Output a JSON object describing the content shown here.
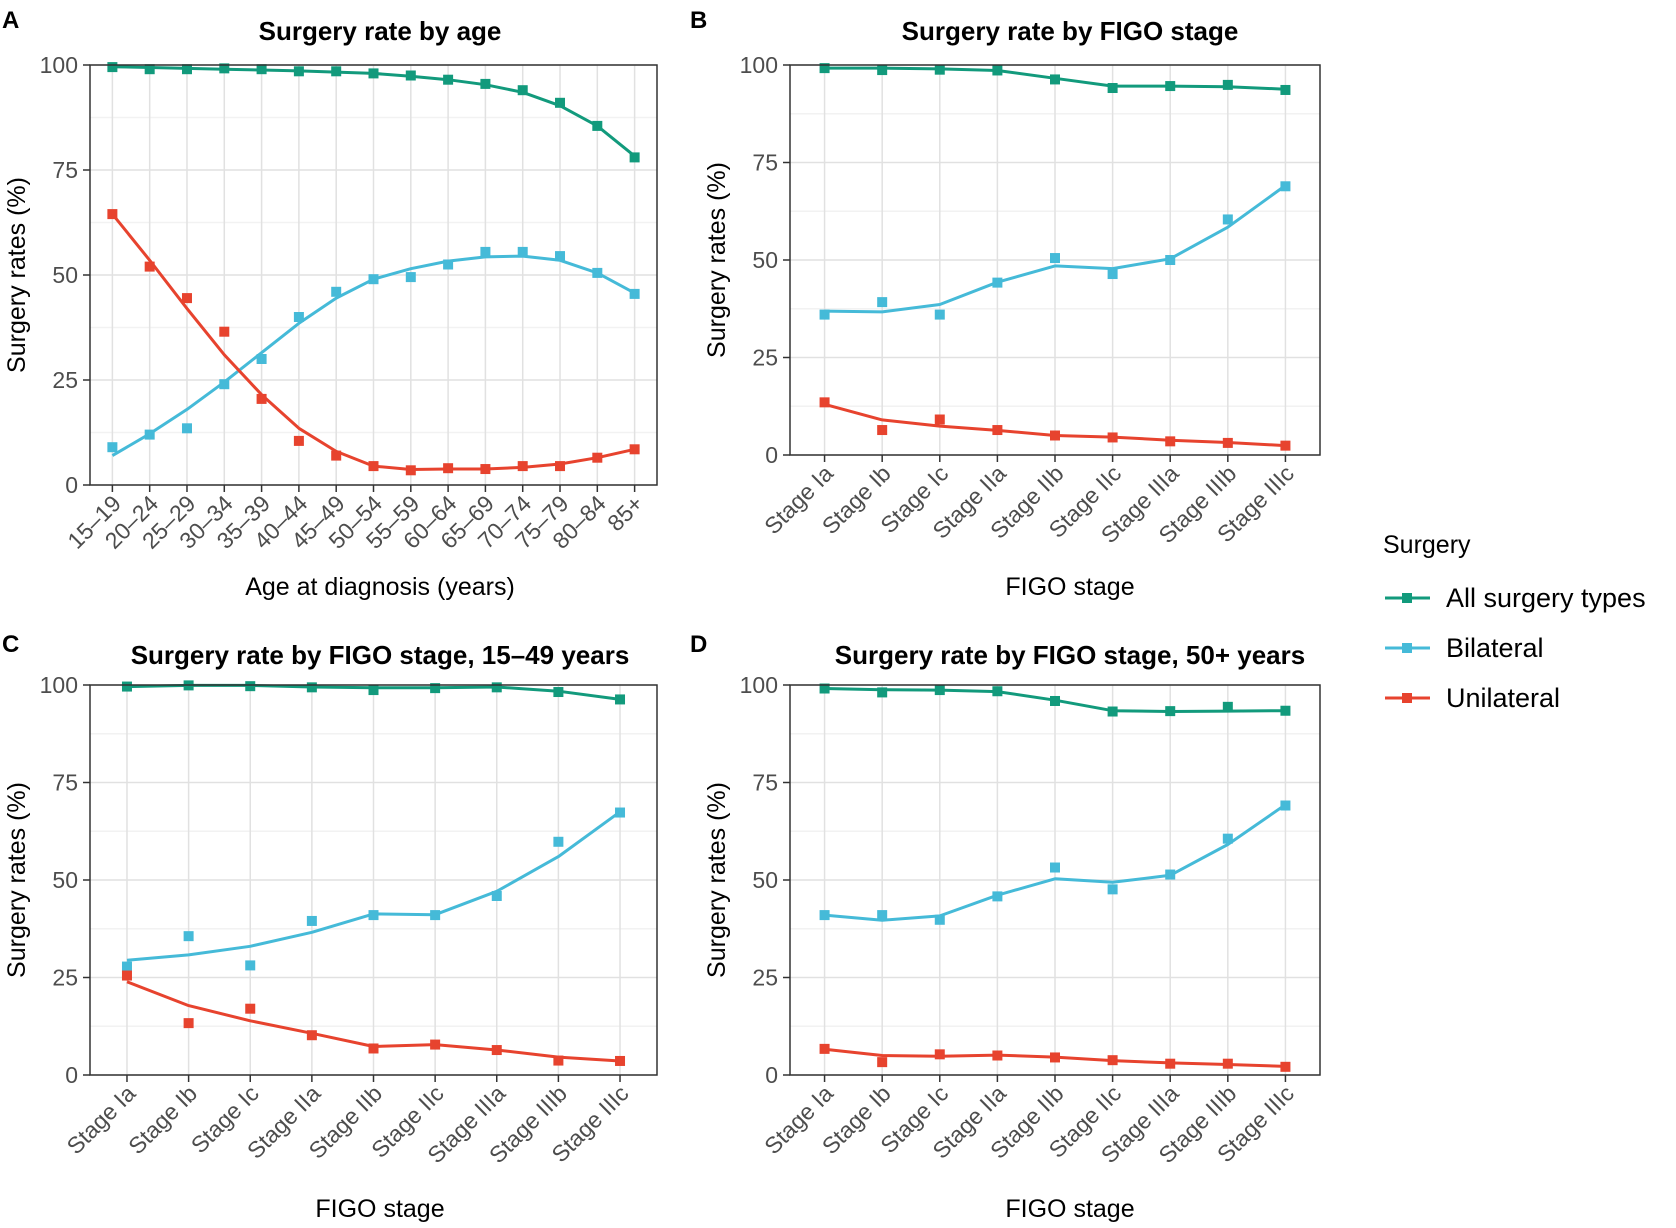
{
  "colors": {
    "all": "#129a7c",
    "bilateral": "#45bad8",
    "unilateral": "#e7432e",
    "grid_major": "#e1e1e1",
    "grid_minor": "#f2f2f2",
    "axis": "#333333",
    "tick_text": "#4d4d4d"
  },
  "legend": {
    "title": "Surgery",
    "items": [
      {
        "key": "all",
        "label": "All surgery types"
      },
      {
        "key": "bilateral",
        "label": "Bilateral"
      },
      {
        "key": "unilateral",
        "label": "Unilateral"
      }
    ]
  },
  "chart_data": [
    {
      "panel": "A",
      "type": "line",
      "title": "Surgery rate by age",
      "xlabel": "Age at diagnosis (years)",
      "ylabel": "Surgery rates (%)",
      "ylim": [
        0,
        100
      ],
      "yticks": [
        0,
        25,
        50,
        75,
        100
      ],
      "categories": [
        "15–19",
        "20–24",
        "25–29",
        "30–34",
        "35–39",
        "40–44",
        "45–49",
        "50–54",
        "55–59",
        "60–64",
        "65–69",
        "70–74",
        "75–79",
        "80–84",
        "85+"
      ],
      "series": [
        {
          "key": "all",
          "name": "All surgery types",
          "points": [
            99.5,
            99,
            99,
            99.2,
            99,
            98.5,
            98.5,
            98,
            97.5,
            96.5,
            95.5,
            94,
            91,
            85.5,
            78
          ],
          "smooth": [
            99.6,
            99.4,
            99.2,
            99,
            98.8,
            98.6,
            98.3,
            98,
            97.3,
            96.5,
            95.3,
            93.5,
            90.3,
            85.5,
            78.3
          ]
        },
        {
          "key": "bilateral",
          "name": "Bilateral",
          "points": [
            9,
            12,
            13.5,
            24,
            30,
            40,
            46,
            49,
            49.5,
            52.5,
            55.5,
            55.5,
            54.5,
            50.5,
            45.5
          ],
          "smooth": [
            7,
            12.2,
            18,
            24.5,
            31.5,
            38.5,
            44.5,
            49,
            51.5,
            53.3,
            54.3,
            54.5,
            53.5,
            50.5,
            45.7
          ]
        },
        {
          "key": "unilateral",
          "name": "Unilateral",
          "points": [
            64.5,
            52,
            44.5,
            36.5,
            20.5,
            10.5,
            7,
            4.5,
            3.5,
            4,
            3.8,
            4.5,
            4.5,
            6.5,
            8.5
          ],
          "smooth": [
            64.5,
            53.5,
            42,
            31,
            21.5,
            13.5,
            8,
            4.5,
            3.7,
            3.8,
            3.8,
            4.2,
            5,
            6.5,
            8.5
          ]
        }
      ]
    },
    {
      "panel": "B",
      "type": "line",
      "title": "Surgery rate by FIGO stage",
      "xlabel": "FIGO stage",
      "ylabel": "Surgery rates (%)",
      "ylim": [
        0,
        100
      ],
      "yticks": [
        0,
        25,
        50,
        75,
        100
      ],
      "categories": [
        "Stage Ia",
        "Stage Ib",
        "Stage Ic",
        "Stage IIa",
        "Stage IIb",
        "Stage IIc",
        "Stage IIIa",
        "Stage IIIb",
        "Stage IIIc"
      ],
      "series": [
        {
          "key": "all",
          "name": "All surgery types",
          "points": [
            99.2,
            98.7,
            98.8,
            98.6,
            96.3,
            94.1,
            94.6,
            94.9,
            93.6
          ],
          "smooth": [
            99.2,
            99.2,
            99,
            98.6,
            96.6,
            94.6,
            94.6,
            94.4,
            93.8
          ]
        },
        {
          "key": "bilateral",
          "name": "Bilateral",
          "points": [
            36,
            39.2,
            36,
            44.2,
            50.5,
            46.4,
            50,
            60.4,
            68.9
          ],
          "smooth": [
            36.9,
            36.7,
            38.6,
            44.3,
            48.5,
            47.8,
            50.3,
            58.4,
            69.1
          ]
        },
        {
          "key": "unilateral",
          "name": "Unilateral",
          "points": [
            13.5,
            6.4,
            9.1,
            6.4,
            5,
            4.5,
            3.5,
            3.1,
            2.4
          ],
          "smooth": [
            13,
            9,
            7.4,
            6.3,
            5,
            4.6,
            3.8,
            3.2,
            2.4
          ]
        }
      ]
    },
    {
      "panel": "C",
      "type": "line",
      "title": "Surgery rate by FIGO stage, 15–49 years",
      "xlabel": "FIGO stage",
      "ylabel": "Surgery rates (%)",
      "ylim": [
        0,
        100
      ],
      "yticks": [
        0,
        25,
        50,
        75,
        100
      ],
      "categories": [
        "Stage Ia",
        "Stage Ib",
        "Stage Ic",
        "Stage IIa",
        "Stage IIb",
        "Stage IIc",
        "Stage IIIa",
        "Stage IIIb",
        "Stage IIIc"
      ],
      "series": [
        {
          "key": "all",
          "name": "All surgery types",
          "points": [
            99.6,
            99.9,
            99.7,
            99.4,
            98.7,
            99.2,
            99.4,
            98.2,
            96.3
          ],
          "smooth": [
            99.6,
            99.9,
            99.9,
            99.5,
            99.3,
            99.3,
            99.5,
            98.4,
            96.3
          ]
        },
        {
          "key": "bilateral",
          "name": "Bilateral",
          "points": [
            27.8,
            35.6,
            28.1,
            39.5,
            41,
            41,
            45.9,
            59.8,
            67.3
          ],
          "smooth": [
            29.4,
            30.8,
            33,
            36.6,
            41.3,
            41.1,
            47.1,
            56,
            67.5
          ]
        },
        {
          "key": "unilateral",
          "name": "Unilateral",
          "points": [
            25.5,
            13.3,
            17,
            10.2,
            6.8,
            7.8,
            6.4,
            3.7,
            3.6
          ],
          "smooth": [
            23.9,
            17.8,
            13.9,
            10.7,
            7.3,
            7.8,
            6.4,
            4.6,
            3.6
          ]
        }
      ]
    },
    {
      "panel": "D",
      "type": "line",
      "title": "Surgery rate by FIGO stage, 50+ years",
      "xlabel": "FIGO stage",
      "ylabel": "Surgery rates (%)",
      "ylim": [
        0,
        100
      ],
      "yticks": [
        0,
        25,
        50,
        75,
        100
      ],
      "categories": [
        "Stage Ia",
        "Stage Ib",
        "Stage Ic",
        "Stage IIa",
        "Stage IIb",
        "Stage IIc",
        "Stage IIIa",
        "Stage IIIb",
        "Stage IIIc"
      ],
      "series": [
        {
          "key": "all",
          "name": "All surgery types",
          "points": [
            99.1,
            98.1,
            98.7,
            98.4,
            95.9,
            93.2,
            93.3,
            94.4,
            93.4
          ],
          "smooth": [
            99.1,
            98.8,
            98.7,
            98.3,
            96.1,
            93.4,
            93.2,
            93.3,
            93.4
          ]
        },
        {
          "key": "bilateral",
          "name": "Bilateral",
          "points": [
            41,
            41,
            39.8,
            45.8,
            53.2,
            47.6,
            51.4,
            60.6,
            69.1
          ],
          "smooth": [
            41,
            39.7,
            40.8,
            46.1,
            50.3,
            49.4,
            51.2,
            59.1,
            69.3
          ]
        },
        {
          "key": "unilateral",
          "name": "Unilateral",
          "points": [
            6.7,
            3.3,
            5.3,
            5,
            4.5,
            3.8,
            2.9,
            2.9,
            2.1
          ],
          "smooth": [
            6.6,
            5,
            4.8,
            5.1,
            4.6,
            3.7,
            3.1,
            2.7,
            2.2
          ]
        }
      ]
    }
  ]
}
